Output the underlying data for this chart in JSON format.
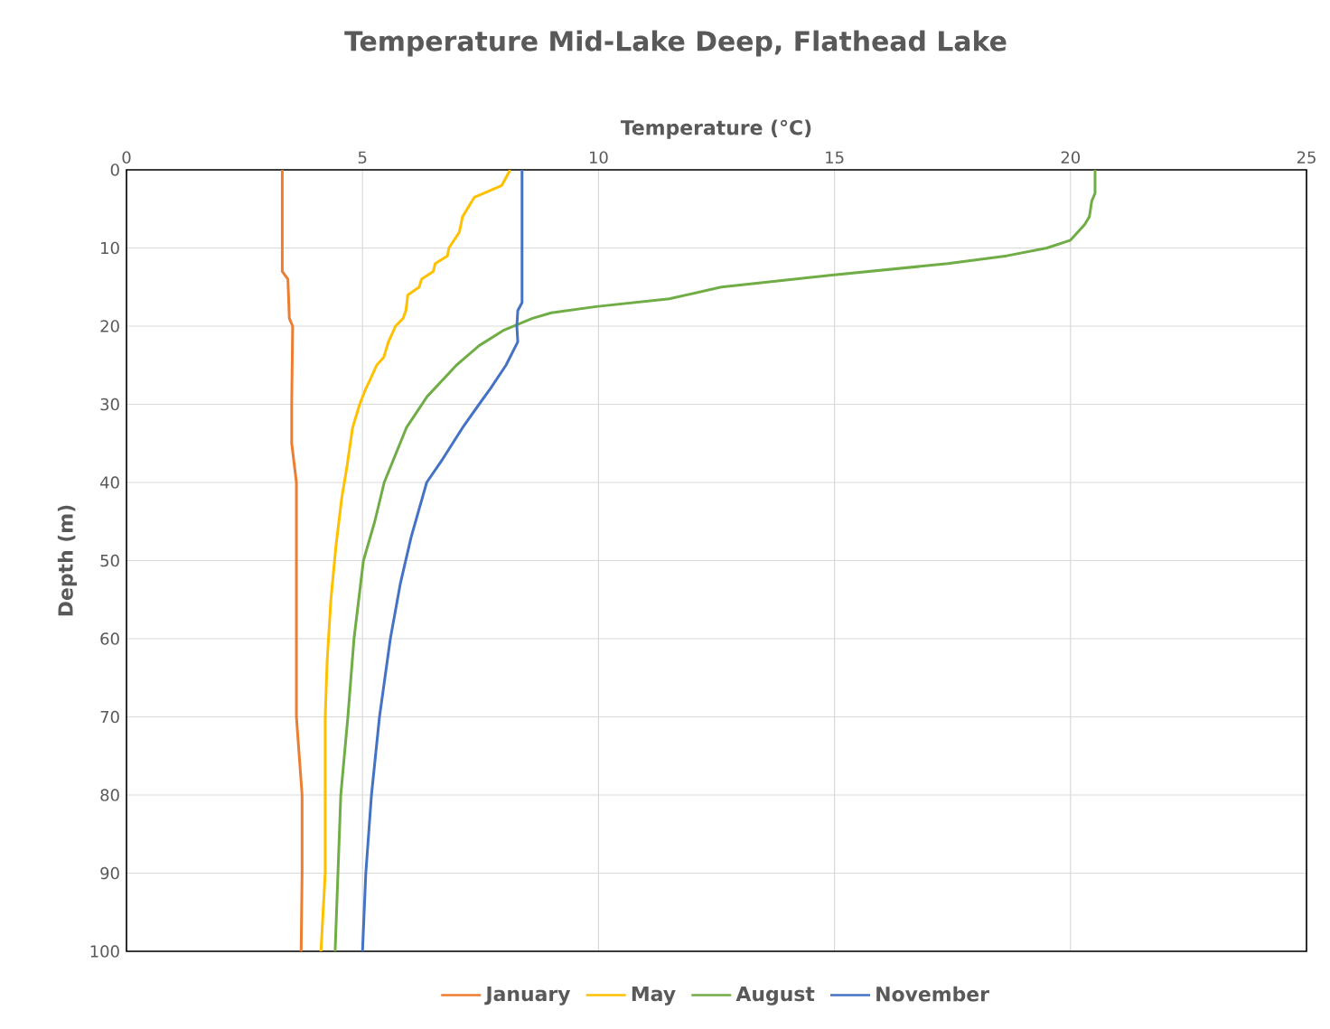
{
  "chart_data": {
    "type": "line",
    "title": "Temperature Mid-Lake Deep, Flathead Lake",
    "xlabel": "Temperature (°C)",
    "ylabel": "Depth (m)",
    "xlim": [
      0,
      25
    ],
    "xticks": [
      0,
      5,
      10,
      15,
      20,
      25
    ],
    "ylim": [
      100,
      0
    ],
    "yticks": [
      0,
      10,
      20,
      30,
      40,
      50,
      60,
      70,
      80,
      90,
      100
    ],
    "grid": true,
    "legend": "bottom",
    "series": [
      {
        "name": "January",
        "color": "#ed7d31",
        "x": [
          3.3,
          3.3,
          3.42,
          3.45,
          3.52,
          3.5,
          3.5,
          3.6,
          3.6,
          3.72,
          3.72,
          3.7
        ],
        "values": [
          0,
          13,
          14,
          19,
          20,
          30,
          35,
          40,
          70,
          80,
          90,
          100
        ]
      },
      {
        "name": "May",
        "color": "#ffc000",
        "x": [
          8.13,
          7.95,
          7.37,
          7.12,
          7.05,
          6.83,
          6.8,
          6.54,
          6.5,
          6.25,
          6.2,
          5.96,
          5.92,
          5.86,
          5.7,
          5.55,
          5.45,
          5.3,
          5.15,
          5.07,
          4.94,
          4.79,
          4.67,
          4.56,
          4.44,
          4.33,
          4.25,
          4.21,
          4.21,
          4.12
        ],
        "values": [
          0,
          2,
          3.5,
          6,
          8,
          10,
          11,
          12,
          13,
          14,
          15,
          16,
          18,
          19,
          20,
          22,
          24,
          25,
          27,
          28,
          30,
          33,
          38,
          42,
          48,
          55,
          63,
          70,
          90,
          100
        ]
      },
      {
        "name": "August",
        "color": "#70ad47",
        "x": [
          20.52,
          20.52,
          20.45,
          20.4,
          20.3,
          20.0,
          19.5,
          18.65,
          17.4,
          14.9,
          12.6,
          11.5,
          9.95,
          9.0,
          8.6,
          8.0,
          7.47,
          6.99,
          6.37,
          5.93,
          5.46,
          5.26,
          5.02,
          4.82,
          4.69,
          4.54,
          4.42
        ],
        "values": [
          0,
          3,
          4,
          6,
          7,
          9,
          10,
          11,
          12,
          13.5,
          15,
          16.5,
          17.5,
          18.3,
          19,
          20.5,
          22.5,
          25,
          29,
          33,
          40,
          45,
          50,
          60,
          70,
          80,
          100
        ]
      },
      {
        "name": "November",
        "color": "#4472c4",
        "x": [
          8.38,
          8.38,
          8.29,
          8.27,
          8.29,
          8.04,
          7.71,
          7.47,
          7.12,
          6.7,
          6.36,
          6.03,
          5.8,
          5.59,
          5.36,
          5.19,
          5.07,
          5.0
        ],
        "values": [
          0,
          17,
          18,
          20,
          22,
          25,
          28,
          30,
          33,
          37,
          40,
          47,
          53,
          60,
          70,
          80,
          90,
          100
        ]
      }
    ]
  }
}
